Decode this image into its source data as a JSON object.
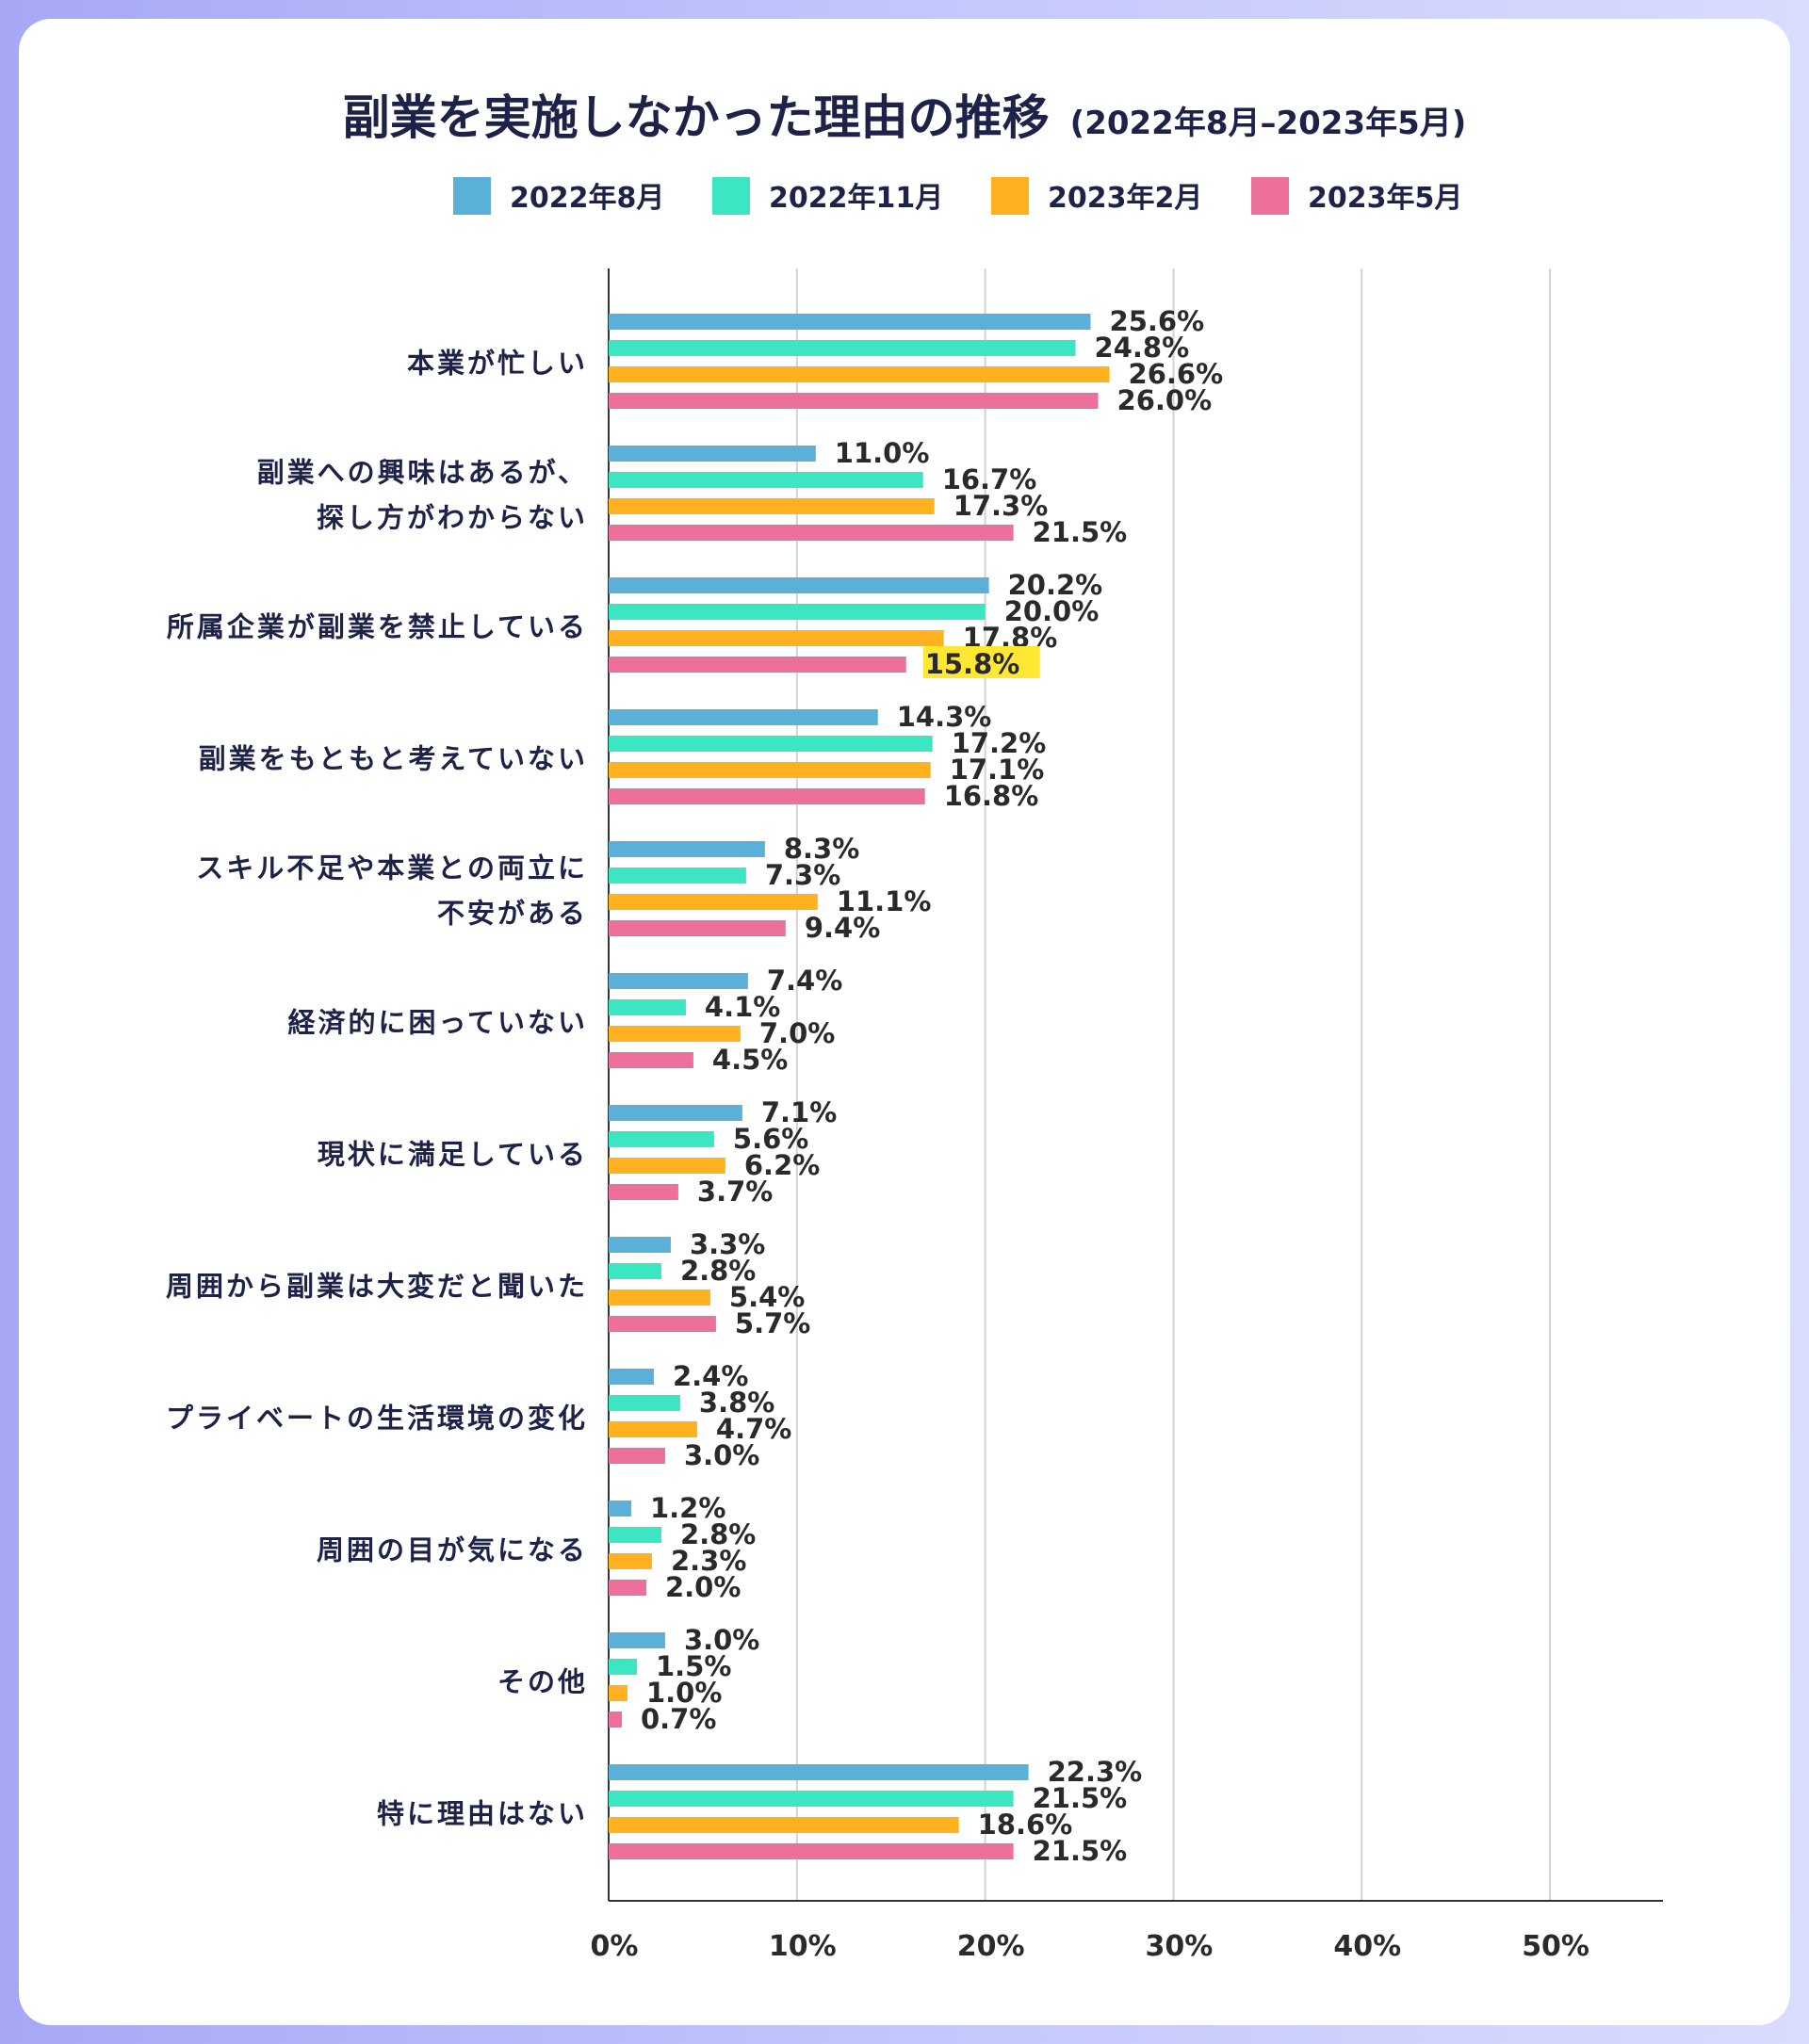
{
  "chart_data": {
    "type": "bar",
    "orientation": "horizontal",
    "title": "副業を実施しなかった理由の推移",
    "subtitle": "(2022年8月–2023年5月)",
    "categories": [
      [
        "本業が忙しい"
      ],
      [
        "副業への興味はあるが、",
        "探し方がわからない"
      ],
      [
        "所属企業が副業を禁止している"
      ],
      [
        "副業をもともと考えていない"
      ],
      [
        "スキル不足や本業との両立に",
        "不安がある"
      ],
      [
        "経済的に困っていない"
      ],
      [
        "現状に満足している"
      ],
      [
        "周囲から副業は大変だと聞いた"
      ],
      [
        "プライベートの生活環境の変化"
      ],
      [
        "周囲の目が気になる"
      ],
      [
        "その他"
      ],
      [
        "特に理由はない"
      ]
    ],
    "series": [
      {
        "name": "2022年8月",
        "color": "#5ab0d8",
        "values": [
          25.6,
          11.0,
          20.2,
          14.3,
          8.3,
          7.4,
          7.1,
          3.3,
          2.4,
          1.2,
          3.0,
          22.3
        ]
      },
      {
        "name": "2022年11月",
        "color": "#3de6c3",
        "values": [
          24.8,
          16.7,
          20.0,
          17.2,
          7.3,
          4.1,
          5.6,
          2.8,
          3.8,
          2.8,
          1.5,
          21.5
        ]
      },
      {
        "name": "2023年2月",
        "color": "#ffb11f",
        "values": [
          26.6,
          17.3,
          17.8,
          17.1,
          11.1,
          7.0,
          6.2,
          5.4,
          4.7,
          2.3,
          1.0,
          18.6
        ]
      },
      {
        "name": "2023年5月",
        "color": "#ec6f9c",
        "values": [
          26.0,
          21.5,
          15.8,
          16.8,
          9.4,
          4.5,
          3.7,
          5.7,
          3.0,
          2.0,
          0.7,
          21.5
        ]
      }
    ],
    "highlight": {
      "series": 3,
      "category": 2,
      "color": "#ffe733"
    },
    "xlim": [
      0,
      56
    ],
    "xticks": [
      0,
      10,
      20,
      30,
      40,
      50
    ],
    "value_suffix": "%",
    "legend_position": "top-center",
    "grid": true,
    "colors": {
      "title": "#1e2248",
      "label": "#1e2248",
      "value": "#2a2a2a",
      "grid": "#d2d2d2",
      "axis": "#333333"
    }
  }
}
